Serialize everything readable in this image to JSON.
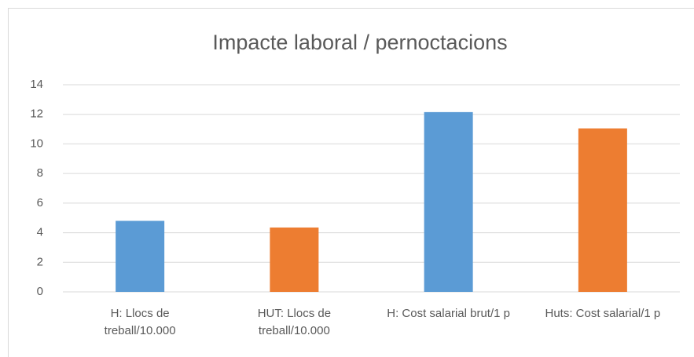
{
  "chart_data": {
    "type": "bar",
    "title": "Impacte laboral / pernoctacions",
    "categories": [
      "H: Llocs de treball/10.000",
      "HUT: Llocs de treball/10.000",
      "H: Cost salarial brut/1 p",
      "Huts: Cost salarial/1 p"
    ],
    "values": [
      4.8,
      4.35,
      12.15,
      11.05
    ],
    "colors": [
      "#5b9bd5",
      "#ed7d31",
      "#5b9bd5",
      "#ed7d31"
    ],
    "ylim": [
      0,
      14
    ],
    "yticks": [
      0,
      2,
      4,
      6,
      8,
      10,
      12,
      14
    ],
    "grid": true
  }
}
